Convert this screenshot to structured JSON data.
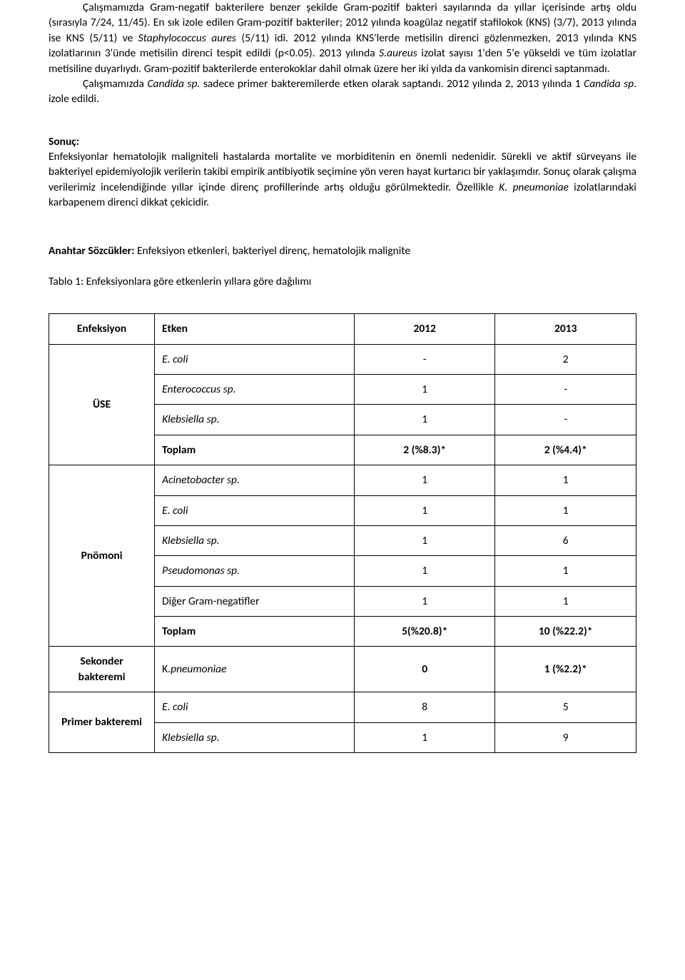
{
  "paragraphs": {
    "p1_a": "Çalışmamızda Gram-negatif bakterilere benzer şekilde  Gram-pozitif bakteri sayılarında da yıllar içerisinde  artış oldu (sırasıyla 7/24,  11/45). En sık izole edilen Gram-pozitif  bakteriler; 2012 yılında koagülaz negatif stafilokok (KNS) (3/7),  2013 yılında ise KNS (5/11) ve ",
    "p1_b": "Staphylococcus aures",
    "p1_c": " (5/11) idi. 2012 yılında KNS'lerde metisilin direnci gözlenmezken, 2013 yılında KNS izolatlarının 3'ünde metisilin direnci tespit edildi (p<0.05). 2013 yılında ",
    "p1_d": "S.aureus",
    "p1_e": " izolat sayısı 1'den 5'e yükseldi ve tüm izolatlar metisiline duyarlıydı. Gram-pozitif bakterilerde enterokoklar dahil olmak üzere her iki yılda da vankomisin direnci saptanmadı.",
    "p2_a": "Çalışmamızda ",
    "p2_b": "Candida sp.",
    "p2_c": " sadece primer bakteremilerde etken olarak saptandı. 2012 yılında 2, 2013 yılında 1 ",
    "p2_d": "Candida sp",
    "p2_e": ". izole edildi.",
    "sonuc_label": "Sonuç:",
    "sonuc_a": "Enfeksiyonlar hematolojik maligniteli hastalarda mortalite ve morbiditenin en önemli nedenidir. Sürekli ve aktif sürveyans ile bakteriyel epidemiyolojik verilerin takibi empirik antibiyotik seçimine yön veren hayat kurtarıcı bir yaklaşımdır. Sonuç olarak çalışma verilerimiz incelendiğinde yıllar içinde direnç profillerinde artış olduğu görülmektedir. Özellikle ",
    "sonuc_b": "K. pneumoniae",
    "sonuc_c": " izolatlarındaki karbapenem direnci dikkat çekicidir.",
    "anahtar_label": "Anahtar Sözcükler: ",
    "anahtar_text": "Enfeksiyon etkenleri, bakteriyel direnç, hematolojik malignite",
    "tablo_title": "Tablo 1: Enfeksiyonlara göre etkenlerin yıllara göre dağılımı"
  },
  "table": {
    "headers": {
      "c1": "Enfeksiyon",
      "c2": "Etken",
      "c3": "2012",
      "c4": "2013"
    },
    "groups": [
      {
        "label": "ÜSE",
        "rows": [
          {
            "etken": "E. coli",
            "italic": true,
            "y2012": "-",
            "y2013": "2"
          },
          {
            "etken": "Enterococcus sp.",
            "italic": true,
            "y2012": "1",
            "y2013": "-"
          },
          {
            "etken": "Klebsiella sp.",
            "italic": true,
            "y2012": "1",
            "y2013": "-"
          },
          {
            "etken": "Toplam",
            "bold": true,
            "y2012": "2 (%8.3)*",
            "y2013": "2 (%4.4)*",
            "boldvals": true
          }
        ]
      },
      {
        "label": "Pnömoni",
        "rows": [
          {
            "etken": "Acinetobacter sp.",
            "italic": true,
            "y2012": "1",
            "y2013": "1"
          },
          {
            "etken": "E. coli",
            "italic": true,
            "y2012": "1",
            "y2013": "1"
          },
          {
            "etken": "Klebsiella sp.",
            "italic": true,
            "y2012": "1",
            "y2013": "6"
          },
          {
            "etken": "Pseudomonas sp.",
            "italic": true,
            "y2012": "1",
            "y2013": "1"
          },
          {
            "etken": "Diğer Gram-negatifler",
            "y2012": "1",
            "y2013": "1"
          },
          {
            "etken": "Toplam",
            "bold": true,
            "y2012": "5(%20.8)*",
            "y2013": "10 (%22.2)*",
            "boldvals": true
          }
        ]
      },
      {
        "label": "Sekonder bakteremi",
        "rows": [
          {
            "etken_pre": "K.",
            "etken_it": "pneumoniae",
            "y2012": "0",
            "y2013": "1 (%2.2)*",
            "boldvals": true
          }
        ]
      },
      {
        "label": "Primer bakteremi",
        "rows": [
          {
            "etken": "E. coli",
            "italic": true,
            "y2012": "8",
            "y2013": "5"
          },
          {
            "etken": "Klebsiella sp.",
            "italic": true,
            "y2012": "1",
            "y2013": "9"
          }
        ]
      }
    ]
  }
}
